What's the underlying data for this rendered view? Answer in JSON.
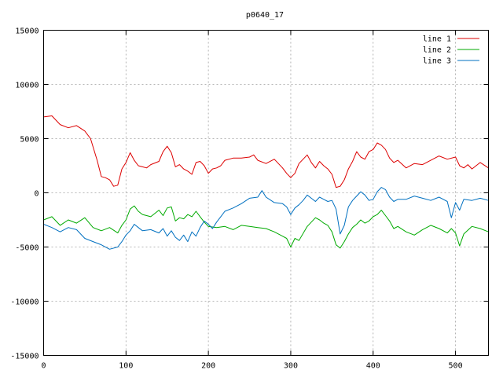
{
  "chart_data": {
    "type": "line",
    "title": "p0640_17",
    "xlabel": "",
    "ylabel": "",
    "xlim": [
      0,
      540
    ],
    "ylim": [
      -15000,
      15000
    ],
    "grid": true,
    "legend_position": "top-right",
    "x_ticks": [
      0,
      100,
      200,
      300,
      400,
      500
    ],
    "y_ticks": [
      -15000,
      -10000,
      -5000,
      0,
      5000,
      10000,
      15000
    ],
    "series": [
      {
        "name": "line 1",
        "color": "#dd0000",
        "x": [
          0,
          10,
          20,
          30,
          40,
          50,
          57,
          65,
          70,
          75,
          80,
          85,
          90,
          95,
          100,
          105,
          110,
          115,
          120,
          125,
          130,
          140,
          145,
          150,
          155,
          160,
          165,
          170,
          175,
          180,
          185,
          190,
          195,
          200,
          205,
          210,
          215,
          220,
          230,
          240,
          250,
          255,
          260,
          270,
          280,
          290,
          295,
          300,
          305,
          310,
          315,
          320,
          325,
          330,
          335,
          340,
          345,
          350,
          355,
          360,
          365,
          370,
          375,
          380,
          385,
          390,
          395,
          400,
          405,
          410,
          415,
          420,
          425,
          430,
          440,
          450,
          460,
          470,
          480,
          490,
          500,
          505,
          510,
          515,
          520,
          530,
          540
        ],
        "y": [
          7000,
          7100,
          6300,
          6000,
          6200,
          5700,
          5000,
          3000,
          1500,
          1400,
          1200,
          600,
          700,
          2200,
          2800,
          3700,
          3000,
          2500,
          2400,
          2300,
          2600,
          2900,
          3800,
          4300,
          3700,
          2400,
          2600,
          2200,
          2000,
          1700,
          2800,
          2900,
          2500,
          1800,
          2200,
          2300,
          2500,
          3000,
          3200,
          3200,
          3300,
          3500,
          3000,
          2700,
          3100,
          2300,
          1800,
          1400,
          1800,
          2700,
          3100,
          3500,
          2800,
          2300,
          2900,
          2500,
          2200,
          1700,
          500,
          600,
          1200,
          2200,
          2900,
          3800,
          3300,
          3100,
          3800,
          4000,
          4600,
          4400,
          4000,
          3200,
          2800,
          3000,
          2300,
          2700,
          2600,
          3000,
          3400,
          3100,
          3300,
          2500,
          2300,
          2600,
          2200,
          2800,
          2300
        ]
      },
      {
        "name": "line 2",
        "color": "#00aa00",
        "x": [
          0,
          10,
          20,
          30,
          40,
          50,
          60,
          70,
          80,
          90,
          95,
          100,
          105,
          110,
          115,
          120,
          130,
          140,
          145,
          150,
          155,
          160,
          165,
          170,
          175,
          180,
          185,
          190,
          195,
          200,
          210,
          220,
          230,
          240,
          250,
          260,
          270,
          280,
          290,
          295,
          300,
          305,
          310,
          320,
          325,
          330,
          335,
          340,
          345,
          350,
          355,
          360,
          365,
          370,
          375,
          380,
          385,
          390,
          395,
          400,
          405,
          410,
          415,
          420,
          425,
          430,
          440,
          450,
          460,
          470,
          480,
          490,
          495,
          500,
          505,
          510,
          520,
          530,
          540
        ],
        "y": [
          -2500,
          -2200,
          -3000,
          -2500,
          -2800,
          -2300,
          -3200,
          -3500,
          -3200,
          -3700,
          -3000,
          -2500,
          -1500,
          -1200,
          -1700,
          -2000,
          -2200,
          -1600,
          -2100,
          -1400,
          -1300,
          -2600,
          -2300,
          -2400,
          -2000,
          -2200,
          -1700,
          -2200,
          -2700,
          -3100,
          -3200,
          -3100,
          -3400,
          -3000,
          -3100,
          -3200,
          -3300,
          -3600,
          -4000,
          -4200,
          -5000,
          -4200,
          -4400,
          -3100,
          -2700,
          -2300,
          -2500,
          -2800,
          -3000,
          -3600,
          -4800,
          -5100,
          -4500,
          -3800,
          -3200,
          -2900,
          -2500,
          -2800,
          -2600,
          -2200,
          -2000,
          -1600,
          -2100,
          -2600,
          -3300,
          -3100,
          -3600,
          -3900,
          -3400,
          -3000,
          -3300,
          -3700,
          -3300,
          -3700,
          -4900,
          -3800,
          -3100,
          -3300,
          -3600
        ]
      },
      {
        "name": "line 3",
        "color": "#0070c0",
        "x": [
          0,
          10,
          20,
          30,
          40,
          50,
          60,
          70,
          80,
          90,
          95,
          100,
          105,
          110,
          115,
          120,
          130,
          140,
          145,
          150,
          155,
          160,
          165,
          170,
          175,
          180,
          185,
          190,
          195,
          200,
          205,
          210,
          215,
          220,
          230,
          240,
          250,
          260,
          265,
          270,
          280,
          290,
          295,
          300,
          305,
          310,
          315,
          320,
          325,
          330,
          335,
          340,
          345,
          350,
          355,
          360,
          365,
          370,
          375,
          380,
          385,
          390,
          395,
          400,
          405,
          410,
          415,
          420,
          425,
          430,
          440,
          450,
          460,
          470,
          480,
          490,
          495,
          500,
          505,
          510,
          520,
          530,
          540
        ],
        "y": [
          -2900,
          -3200,
          -3600,
          -3200,
          -3400,
          -4200,
          -4500,
          -4800,
          -5200,
          -5000,
          -4500,
          -3900,
          -3500,
          -2900,
          -3200,
          -3500,
          -3400,
          -3700,
          -3300,
          -4000,
          -3500,
          -4100,
          -4400,
          -3900,
          -4500,
          -3600,
          -4000,
          -3200,
          -2600,
          -2900,
          -3300,
          -2700,
          -2200,
          -1700,
          -1400,
          -1000,
          -500,
          -400,
          200,
          -400,
          -900,
          -1000,
          -1300,
          -2000,
          -1400,
          -1100,
          -700,
          -200,
          -500,
          -800,
          -400,
          -600,
          -800,
          -700,
          -1500,
          -3800,
          -3000,
          -1300,
          -700,
          -300,
          100,
          -200,
          -700,
          -600,
          100,
          500,
          300,
          -400,
          -800,
          -600,
          -600,
          -300,
          -500,
          -700,
          -400,
          -800,
          -2300,
          -900,
          -1600,
          -600,
          -700,
          -500,
          -700
        ]
      }
    ]
  }
}
